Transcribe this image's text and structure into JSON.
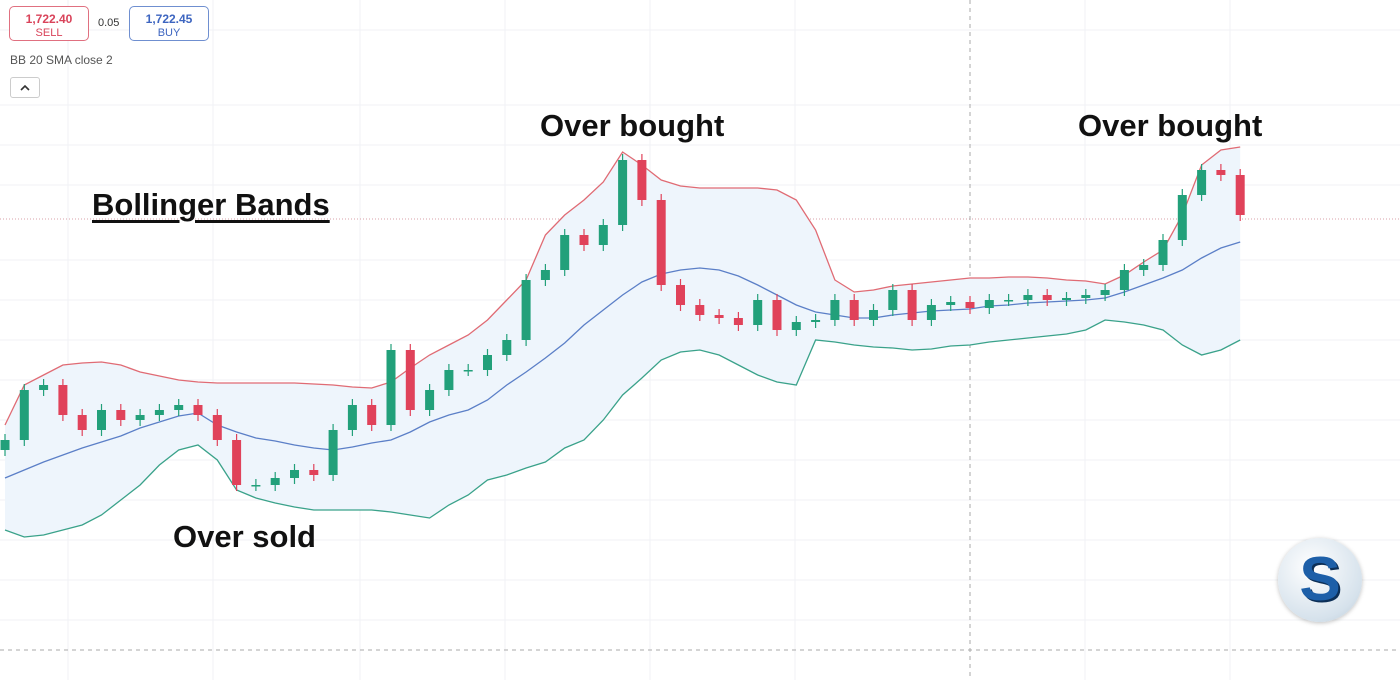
{
  "header": {
    "sell": {
      "price": "1,722.40",
      "label": "SELL"
    },
    "spread": "0.05",
    "buy": {
      "price": "1,722.45",
      "label": "BUY"
    },
    "indicator": "BB 20 SMA close 2"
  },
  "annotations": [
    "Bollinger Bands ",
    "Over bought",
    "Over bought",
    "Over sold"
  ],
  "logo": "S",
  "chart_data": {
    "type": "candlestick",
    "ylim": [
      0,
      680
    ],
    "up_color": "#22a07a",
    "down_color": "#e0425a",
    "open": [
      230,
      240,
      290,
      295,
      265,
      250,
      270,
      260,
      265,
      270,
      275,
      265,
      240,
      195,
      195,
      202,
      210,
      205,
      250,
      275,
      255,
      330,
      270,
      290,
      310,
      310,
      325,
      340,
      400,
      410,
      445,
      435,
      455,
      520,
      480,
      395,
      375,
      365,
      362,
      355,
      380,
      350,
      358,
      360,
      380,
      360,
      370,
      390,
      360,
      375,
      378,
      372,
      380,
      380,
      385,
      380,
      382,
      385,
      390,
      410,
      415,
      440,
      485,
      510,
      505
    ],
    "high": [
      246,
      296,
      301,
      301,
      271,
      276,
      276,
      271,
      276,
      281,
      281,
      271,
      246,
      201,
      208,
      216,
      216,
      256,
      281,
      281,
      336,
      336,
      296,
      316,
      316,
      331,
      346,
      406,
      416,
      451,
      451,
      461,
      526,
      526,
      486,
      401,
      381,
      371,
      368,
      386,
      386,
      364,
      366,
      386,
      386,
      376,
      396,
      396,
      381,
      384,
      384,
      386,
      386,
      391,
      391,
      388,
      391,
      396,
      416,
      421,
      446,
      491,
      516,
      516,
      511
    ],
    "low": [
      224,
      234,
      284,
      259,
      244,
      244,
      254,
      254,
      259,
      264,
      259,
      234,
      189,
      189,
      189,
      196,
      199,
      199,
      244,
      249,
      249,
      264,
      264,
      284,
      304,
      304,
      319,
      334,
      394,
      404,
      429,
      429,
      449,
      474,
      389,
      369,
      359,
      356,
      349,
      349,
      344,
      344,
      352,
      354,
      354,
      354,
      364,
      354,
      354,
      369,
      366,
      366,
      374,
      374,
      374,
      374,
      376,
      379,
      384,
      404,
      409,
      434,
      479,
      499,
      459
    ],
    "close": [
      240,
      290,
      295,
      265,
      250,
      270,
      260,
      265,
      270,
      275,
      265,
      240,
      195,
      195,
      202,
      210,
      205,
      250,
      275,
      255,
      330,
      270,
      290,
      310,
      310,
      325,
      340,
      400,
      410,
      445,
      435,
      455,
      520,
      480,
      395,
      375,
      365,
      362,
      355,
      380,
      350,
      358,
      360,
      380,
      360,
      370,
      390,
      360,
      375,
      378,
      372,
      380,
      380,
      385,
      380,
      382,
      385,
      390,
      410,
      415,
      440,
      485,
      510,
      505,
      465
    ],
    "bands": {
      "fill": "#eef5fc",
      "upper": {
        "color": "#e06b74",
        "values": [
          255,
          295,
          305,
          315,
          317,
          318,
          315,
          308,
          304,
          300,
          298,
          297,
          297,
          297,
          297,
          297,
          296,
          295,
          293,
          292,
          298,
          312,
          325,
          335,
          345,
          360,
          380,
          400,
          445,
          465,
          480,
          498,
          528,
          515,
          500,
          494,
          492,
          492,
          492,
          492,
          490,
          480,
          450,
          400,
          388,
          390,
          394,
          396,
          398,
          400,
          402,
          402,
          403,
          403,
          402,
          400,
          399,
          396,
          405,
          418,
          430,
          465,
          515,
          530,
          533
        ]
      },
      "middle": {
        "color": "#5b7fc7",
        "values": [
          202,
          210,
          218,
          225,
          232,
          238,
          244,
          252,
          258,
          264,
          267,
          255,
          248,
          242,
          239,
          235,
          232,
          230,
          233,
          237,
          240,
          248,
          258,
          265,
          270,
          280,
          295,
          308,
          322,
          337,
          355,
          370,
          385,
          398,
          406,
          410,
          412,
          410,
          404,
          395,
          385,
          375,
          368,
          365,
          362,
          362,
          365,
          367,
          369,
          370,
          371,
          374,
          375,
          377,
          378,
          379,
          380,
          382,
          388,
          395,
          402,
          410,
          422,
          432,
          438
        ]
      },
      "lower": {
        "color": "#3aa28a",
        "values": [
          150,
          143,
          145,
          150,
          155,
          165,
          180,
          195,
          215,
          230,
          235,
          220,
          190,
          182,
          177,
          173,
          170,
          170,
          170,
          170,
          168,
          165,
          162,
          175,
          185,
          200,
          205,
          212,
          218,
          232,
          240,
          260,
          285,
          302,
          320,
          328,
          330,
          325,
          315,
          305,
          298,
          295,
          340,
          338,
          335,
          333,
          332,
          330,
          331,
          334,
          335,
          338,
          340,
          342,
          344,
          346,
          350,
          360,
          358,
          355,
          350,
          335,
          325,
          330,
          340
        ]
      }
    }
  }
}
